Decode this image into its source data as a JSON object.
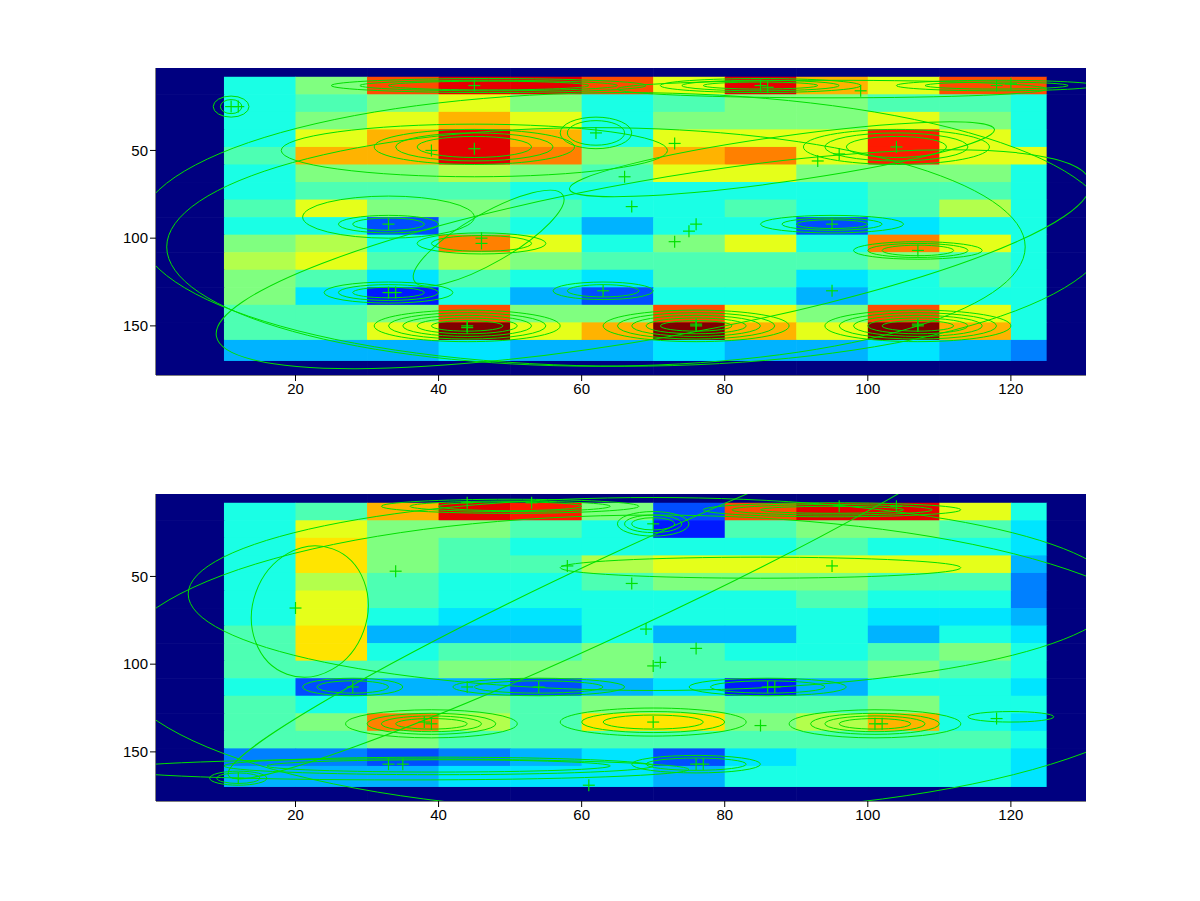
{
  "chart_data": [
    {
      "type": "heatmap",
      "xlim": [
        0.5,
        130.5
      ],
      "ylim": [
        3,
        178
      ],
      "xticks": [
        20,
        40,
        60,
        80,
        100,
        120
      ],
      "yticks": [
        50,
        100,
        150
      ],
      "color_range": [
        0,
        10
      ],
      "x_edges": [
        0.5,
        10,
        20,
        30,
        40,
        50,
        60,
        70,
        80,
        90,
        100,
        110,
        120,
        125,
        130.5
      ],
      "y_edges": [
        3,
        8,
        18,
        28,
        38,
        48,
        58,
        68,
        78,
        88,
        98,
        108,
        118,
        128,
        138,
        148,
        158,
        170,
        178
      ],
      "cells": [
        [
          0,
          0,
          0,
          0,
          0,
          0,
          0,
          0,
          0,
          0,
          0,
          0,
          0,
          0
        ],
        [
          0,
          4,
          5,
          8,
          9,
          9,
          8,
          6,
          9,
          7,
          6,
          8,
          8,
          0
        ],
        [
          0,
          4,
          4.5,
          5,
          6,
          5,
          4,
          4.5,
          5,
          5,
          4.5,
          4.5,
          4,
          0
        ],
        [
          0,
          4,
          5,
          6,
          7,
          6,
          4,
          5,
          5,
          5,
          6,
          5,
          4,
          0
        ],
        [
          0,
          4,
          6,
          7,
          9,
          7,
          4,
          6,
          6,
          6,
          8.5,
          6,
          4,
          0
        ],
        [
          0,
          4.5,
          7,
          7,
          9,
          7.5,
          5,
          7,
          7.5,
          6,
          8.5,
          6,
          6,
          0
        ],
        [
          0,
          4,
          5,
          5,
          5.5,
          5,
          4.5,
          6,
          6,
          5,
          5,
          5,
          4,
          0
        ],
        [
          0,
          4,
          4.5,
          4.5,
          4.5,
          4,
          4,
          4,
          4,
          4,
          4.5,
          4.5,
          4,
          0
        ],
        [
          0,
          4.5,
          6,
          5,
          5,
          4.5,
          4,
          4,
          4.5,
          4,
          4.5,
          5.5,
          4,
          0
        ],
        [
          0,
          4,
          4,
          2,
          4.5,
          4,
          3,
          4,
          4,
          2,
          3.5,
          4,
          4,
          0
        ],
        [
          0,
          5,
          5.5,
          4,
          7.5,
          6,
          4,
          5,
          6,
          4,
          7.5,
          6,
          4,
          0
        ],
        [
          0,
          5.5,
          6,
          4.5,
          5.5,
          5,
          4.5,
          4.5,
          4.5,
          4.5,
          5,
          4.5,
          4,
          0
        ],
        [
          0,
          5,
          4.5,
          3.5,
          4.5,
          4,
          3.5,
          4.5,
          4.5,
          3.5,
          4,
          4.5,
          4,
          0
        ],
        [
          0,
          5,
          3.5,
          1.5,
          4,
          3,
          2,
          4,
          4,
          3,
          4,
          4,
          4,
          0
        ],
        [
          0,
          4.5,
          4.5,
          5,
          8,
          5,
          5,
          8,
          6,
          5,
          8,
          6,
          4,
          0
        ],
        [
          0,
          4.5,
          4.5,
          6,
          10,
          6,
          7,
          10,
          7,
          6,
          10,
          7,
          4,
          0
        ],
        [
          0,
          3,
          3,
          3,
          3.5,
          3,
          3,
          3.5,
          3,
          3,
          3.5,
          3,
          2.5,
          0
        ],
        [
          0,
          0,
          0,
          0,
          0,
          0,
          0,
          0,
          0,
          0,
          0,
          0,
          0,
          0
        ]
      ],
      "ellipses": {
        "color": "#00e000",
        "cx": [
          11,
          11,
          47,
          47,
          47,
          85,
          85,
          85,
          118,
          118,
          95,
          45,
          45,
          45,
          45,
          62,
          62,
          104,
          104,
          104,
          88,
          33,
          33,
          33,
          46,
          46,
          47,
          95,
          95,
          95,
          107,
          107,
          107,
          33,
          33,
          33,
          63,
          63,
          44,
          44,
          44,
          44,
          44,
          76,
          76,
          76,
          76,
          76,
          107,
          107,
          107,
          107,
          107,
          66,
          62,
          70
        ],
        "cy": [
          25,
          25,
          13,
          13,
          13,
          13,
          13,
          13,
          13,
          13,
          15,
          48,
          48,
          48,
          50,
          40,
          40,
          48,
          48,
          48,
          55,
          92,
          92,
          88,
          103,
          103,
          100,
          92,
          92,
          92,
          107,
          107,
          107,
          131,
          131,
          131,
          130,
          130,
          150,
          150,
          150,
          150,
          150,
          150,
          150,
          150,
          150,
          150,
          150,
          150,
          150,
          150,
          150,
          95,
          105,
          112
        ],
        "rx": [
          2.5,
          1.5,
          22,
          18,
          14,
          14,
          11,
          8,
          14,
          10,
          30,
          14,
          11,
          8,
          27,
          5,
          4,
          13,
          10,
          7,
          30,
          7,
          5,
          12,
          9,
          7,
          12,
          10,
          7,
          5,
          9,
          7,
          5,
          9,
          7,
          5,
          7,
          5,
          13,
          11,
          9,
          7,
          5,
          13,
          11,
          9,
          7,
          5,
          13,
          11,
          9,
          7,
          5,
          68,
          60,
          62
        ],
        "ry": [
          6,
          4,
          4,
          3,
          2.5,
          4,
          3,
          2,
          3,
          2,
          5,
          10,
          8,
          6,
          15,
          9,
          7,
          10,
          8,
          6,
          13,
          5,
          3.5,
          12,
          6,
          4.5,
          14,
          5,
          3.5,
          2.5,
          5,
          4,
          3,
          6,
          4.5,
          3,
          5,
          3.5,
          9,
          7.5,
          6,
          4.5,
          3,
          9,
          7.5,
          6,
          4.5,
          3,
          9,
          7.5,
          6,
          4.5,
          3,
          78,
          68,
          45
        ],
        "angle": [
          0,
          0,
          0,
          0,
          0,
          0,
          0,
          0,
          0,
          0,
          0,
          0,
          0,
          0,
          0,
          0,
          0,
          0,
          0,
          0,
          -8,
          0,
          0,
          0,
          0,
          0,
          -30,
          0,
          0,
          0,
          0,
          0,
          0,
          0,
          0,
          0,
          0,
          0,
          0,
          0,
          0,
          0,
          0,
          0,
          0,
          0,
          0,
          0,
          0,
          0,
          0,
          0,
          0,
          0,
          0,
          -10
        ]
      },
      "points": {
        "color": "#00e000",
        "marker": "+",
        "x": [
          11,
          12,
          45,
          85,
          86,
          99,
          118,
          120,
          39,
          45,
          62,
          73,
          104,
          93,
          96,
          66,
          67,
          33,
          46,
          46,
          73,
          75,
          76,
          95,
          107,
          33,
          34,
          63,
          95,
          44,
          76,
          107,
          44,
          76,
          107
        ],
        "y": [
          25,
          25,
          13,
          13,
          14,
          16,
          13,
          12,
          50,
          49,
          40,
          46,
          48,
          56,
          52,
          65,
          82,
          92,
          103,
          100,
          102,
          96,
          92,
          92,
          107,
          131,
          131,
          130,
          130,
          150,
          150,
          150,
          151,
          149,
          149
        ]
      }
    },
    {
      "type": "heatmap",
      "xlim": [
        0.5,
        130.5
      ],
      "ylim": [
        3,
        178
      ],
      "xticks": [
        20,
        40,
        60,
        80,
        100,
        120
      ],
      "yticks": [
        50,
        100,
        150
      ],
      "color_range": [
        0,
        10
      ],
      "x_edges": [
        0.5,
        10,
        20,
        30,
        40,
        50,
        60,
        70,
        80,
        90,
        100,
        110,
        120,
        125,
        130.5
      ],
      "y_edges": [
        3,
        8,
        18,
        28,
        38,
        48,
        58,
        68,
        78,
        88,
        98,
        108,
        118,
        128,
        138,
        148,
        158,
        170,
        178
      ],
      "cells": [
        [
          0,
          0,
          0,
          0,
          0,
          0,
          0,
          0,
          0,
          0,
          0,
          0,
          0,
          0
        ],
        [
          0,
          4,
          4.5,
          7,
          9,
          8.5,
          5,
          2,
          8,
          9,
          9,
          6,
          4,
          0
        ],
        [
          0,
          4,
          6,
          5,
          5,
          4.5,
          4,
          1.5,
          4.5,
          5,
          5,
          4.5,
          3.5,
          0
        ],
        [
          0,
          4,
          6.5,
          5,
          4.5,
          4,
          4,
          4,
          4,
          4.5,
          4,
          4,
          3.5,
          0
        ],
        [
          0,
          4,
          6.5,
          5,
          4.5,
          4.5,
          5.5,
          6,
          6,
          6,
          6,
          6,
          3,
          0
        ],
        [
          0,
          4,
          5.5,
          4.5,
          4,
          4,
          4.5,
          5,
          5,
          5,
          4.5,
          4.5,
          2.5,
          0
        ],
        [
          0,
          4,
          6,
          4.5,
          4,
          4,
          4,
          4,
          4,
          4.5,
          4,
          4,
          2.5,
          0
        ],
        [
          0,
          4,
          6,
          4,
          3.5,
          3.5,
          4,
          4,
          4,
          4,
          3.5,
          3.5,
          3,
          0
        ],
        [
          0,
          4.5,
          6.5,
          3,
          3,
          3,
          4,
          3,
          3,
          4,
          3,
          4,
          3.5,
          0
        ],
        [
          0,
          4.5,
          6.5,
          4,
          4.5,
          4.5,
          5,
          4.5,
          4,
          4,
          4.5,
          5,
          4,
          0
        ],
        [
          0,
          4.5,
          4.5,
          4.5,
          5,
          5,
          5,
          4.5,
          4.5,
          4.5,
          5,
          4.5,
          4,
          0
        ],
        [
          0,
          4,
          2,
          3,
          3,
          2,
          3,
          3.5,
          1.5,
          3,
          4,
          4,
          3.5,
          0
        ],
        [
          0,
          4.5,
          4,
          5,
          5,
          4.5,
          5,
          5,
          4.5,
          4.5,
          5,
          4,
          4,
          0
        ],
        [
          0,
          4.5,
          5,
          7.5,
          5.5,
          4.5,
          6.5,
          6.5,
          5,
          5.5,
          7,
          4,
          3.5,
          0
        ],
        [
          0,
          4.5,
          4.5,
          5,
          4.5,
          4.5,
          4.5,
          4.5,
          4.5,
          4.5,
          4.5,
          4.5,
          4,
          0
        ],
        [
          0,
          2.5,
          2.5,
          2,
          2.5,
          3,
          3.5,
          2,
          3.5,
          4,
          4,
          4,
          3.5,
          0
        ],
        [
          0,
          3,
          3,
          3,
          3.5,
          3.5,
          3.5,
          3,
          4,
          4,
          4,
          4,
          3.5,
          0
        ],
        [
          0,
          0,
          0,
          0,
          0,
          0,
          0,
          0,
          0,
          0,
          0,
          0,
          0,
          0
        ]
      ],
      "ellipses": {
        "color": "#00e000",
        "cx": [
          50,
          50,
          50,
          95,
          95,
          95,
          70,
          70,
          70,
          85,
          22,
          70,
          65,
          28,
          28,
          54,
          54,
          86,
          86,
          39,
          39,
          39,
          39,
          70,
          70,
          70,
          101,
          101,
          101,
          101,
          76,
          76,
          40,
          40,
          35,
          12,
          12,
          70,
          120
        ],
        "cy": [
          10,
          10,
          10,
          12,
          12,
          12,
          20,
          20,
          20,
          45,
          70,
          60,
          60,
          113,
          113,
          113,
          113,
          113,
          113,
          134,
          134,
          134,
          134,
          133,
          133,
          133,
          134,
          134,
          134,
          134,
          157,
          157,
          158,
          158,
          160,
          165,
          165,
          100,
          130
        ],
        "rx": [
          18,
          14,
          10,
          18,
          14,
          10,
          5,
          4,
          3,
          28,
          8,
          65,
          60,
          7,
          5,
          12,
          9,
          11,
          8,
          12,
          9,
          7,
          5,
          13,
          10,
          7,
          12,
          9,
          7,
          5,
          9,
          7,
          30,
          24,
          40,
          4,
          3,
          75,
          6
        ],
        "ry": [
          4,
          3,
          2.5,
          4,
          3,
          2,
          7,
          5,
          3.5,
          6,
          38,
          55,
          22,
          5,
          3.5,
          5,
          3.5,
          5,
          3.5,
          8,
          6,
          4.5,
          3,
          8,
          6,
          4,
          8,
          6,
          4.5,
          3,
          5,
          3.5,
          5,
          3.5,
          6,
          4,
          3,
          85,
          3
        ],
        "angle": [
          0,
          0,
          0,
          0,
          0,
          0,
          0,
          0,
          0,
          0,
          20,
          0,
          -25,
          0,
          0,
          0,
          0,
          0,
          0,
          0,
          0,
          0,
          0,
          0,
          0,
          0,
          0,
          0,
          0,
          0,
          0,
          0,
          0,
          0,
          0,
          0,
          0,
          0,
          0
        ]
      },
      "points": {
        "color": "#00e000",
        "marker": "+",
        "x": [
          44,
          53,
          96,
          104,
          70,
          20,
          34,
          58,
          67,
          95,
          69,
          70,
          71,
          76,
          28,
          44,
          54,
          86,
          87,
          39,
          38,
          70,
          85,
          101,
          102,
          118,
          12,
          33,
          35,
          61,
          77,
          76
        ],
        "y": [
          8,
          8,
          10,
          10,
          20,
          68,
          47,
          44,
          54,
          44,
          80,
          101,
          99,
          91,
          113,
          113,
          113,
          113,
          113,
          134,
          133,
          133,
          135,
          134,
          134,
          131,
          165,
          157,
          157,
          169,
          157,
          157
        ]
      }
    }
  ]
}
